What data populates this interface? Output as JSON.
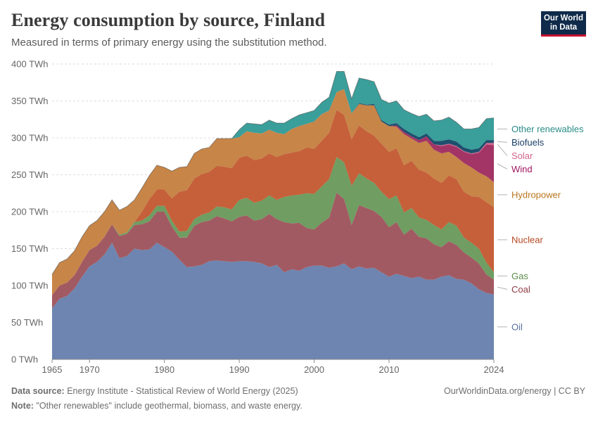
{
  "header": {
    "title": "Energy consumption by source, Finland",
    "subtitle": "Measured in terms of primary energy using the substitution method.",
    "logo_line1": "Our World",
    "logo_line2": "in Data"
  },
  "footer": {
    "source_label": "Data source:",
    "source_text": "Energy Institute - Statistical Review of World Energy (2025)",
    "note_label": "Note:",
    "note_text": "\"Other renewables\" include geothermal, biomass, and waste energy.",
    "credit": "OurWorldinData.org/energy | CC BY"
  },
  "chart_data": {
    "type": "area",
    "stacked": true,
    "title": "Energy consumption by source, Finland",
    "xlabel": "",
    "ylabel": "",
    "ylim": [
      0,
      400
    ],
    "xlim": [
      1965,
      2024
    ],
    "unit_suffix": " TWh",
    "yticks": [
      0,
      50,
      100,
      150,
      200,
      250,
      300,
      350,
      400
    ],
    "yticklabels": [
      "0 TWh",
      "50 TWh",
      "100 TWh",
      "150 TWh",
      "200 TWh",
      "250 TWh",
      "300 TWh",
      "350 TWh",
      "400 TWh"
    ],
    "xticks": [
      1965,
      1970,
      1980,
      1990,
      2000,
      2010,
      2024
    ],
    "x": [
      1965,
      1966,
      1967,
      1968,
      1969,
      1970,
      1971,
      1972,
      1973,
      1974,
      1975,
      1976,
      1977,
      1978,
      1979,
      1980,
      1981,
      1982,
      1983,
      1984,
      1985,
      1986,
      1987,
      1988,
      1989,
      1990,
      1991,
      1992,
      1993,
      1994,
      1995,
      1996,
      1997,
      1998,
      1999,
      2000,
      2001,
      2002,
      2003,
      2004,
      2005,
      2006,
      2007,
      2008,
      2009,
      2010,
      2011,
      2012,
      2013,
      2014,
      2015,
      2016,
      2017,
      2018,
      2019,
      2020,
      2021,
      2022,
      2023,
      2024
    ],
    "series": [
      {
        "name": "Oil",
        "color": "#6d85b0",
        "values": [
          69,
          82,
          86,
          96,
          112,
          126,
          132,
          142,
          158,
          137,
          140,
          150,
          148,
          149,
          158,
          152,
          146,
          135,
          125,
          126,
          128,
          133,
          134,
          133,
          132,
          133,
          133,
          132,
          130,
          125,
          128,
          118,
          122,
          120,
          125,
          127,
          127,
          124,
          126,
          130,
          122,
          126,
          123,
          124,
          118,
          112,
          116,
          113,
          110,
          112,
          108,
          108,
          112,
          114,
          109,
          108,
          103,
          95,
          90,
          88
        ]
      },
      {
        "name": "Coal",
        "color": "#a25a62",
        "values": [
          18,
          18,
          18,
          18,
          20,
          22,
          22,
          24,
          25,
          30,
          30,
          32,
          35,
          38,
          42,
          48,
          34,
          30,
          40,
          55,
          58,
          55,
          60,
          58,
          55,
          60,
          62,
          56,
          60,
          72,
          62,
          68,
          62,
          65,
          53,
          49,
          58,
          68,
          100,
          87,
          60,
          83,
          82,
          77,
          75,
          67,
          70,
          56,
          67,
          54,
          56,
          48,
          40,
          46,
          46,
          37,
          35,
          35,
          25,
          20
        ]
      },
      {
        "name": "Gas",
        "color": "#6f9d62",
        "values": [
          0,
          0,
          0,
          0,
          0,
          0,
          0,
          0,
          0,
          2,
          2,
          4,
          5,
          8,
          8,
          8,
          8,
          8,
          9,
          9,
          10,
          11,
          13,
          15,
          16,
          23,
          24,
          24,
          25,
          25,
          26,
          34,
          38,
          38,
          47,
          48,
          49,
          52,
          48,
          50,
          53,
          43,
          40,
          38,
          34,
          38,
          36,
          30,
          28,
          26,
          25,
          26,
          24,
          26,
          26,
          20,
          20,
          20,
          16,
          10
        ]
      },
      {
        "name": "Nuclear",
        "color": "#c5603a",
        "values": [
          0,
          0,
          0,
          0,
          0,
          0,
          0,
          0,
          0,
          0,
          0,
          0,
          12,
          22,
          22,
          22,
          30,
          54,
          55,
          55,
          55,
          55,
          55,
          55,
          56,
          57,
          57,
          58,
          57,
          57,
          58,
          58,
          58,
          59,
          62,
          61,
          62,
          63,
          64,
          64,
          63,
          65,
          64,
          64,
          65,
          64,
          64,
          64,
          64,
          65,
          64,
          63,
          63,
          63,
          63,
          62,
          63,
          70,
          82,
          88
        ]
      },
      {
        "name": "Hydropower",
        "color": "#c78548",
        "values": [
          28,
          31,
          32,
          33,
          34,
          33,
          34,
          34,
          33,
          33,
          35,
          30,
          32,
          32,
          33,
          30,
          37,
          33,
          32,
          34,
          34,
          33,
          37,
          38,
          40,
          28,
          33,
          37,
          34,
          32,
          33,
          27,
          32,
          34,
          32,
          37,
          36,
          30,
          24,
          35,
          35,
          29,
          35,
          41,
          30,
          35,
          29,
          42,
          30,
          36,
          43,
          39,
          40,
          32,
          30,
          39,
          39,
          33,
          35,
          34
        ]
      },
      {
        "name": "Wind",
        "color": "#a33466",
        "values": [
          0,
          0,
          0,
          0,
          0,
          0,
          0,
          0,
          0,
          0,
          0,
          0,
          0,
          0,
          0,
          0,
          0,
          0,
          0,
          0,
          0,
          0,
          0,
          0,
          0,
          0,
          0,
          0,
          0,
          0,
          0,
          0,
          0,
          0,
          0,
          0,
          0,
          0,
          0,
          0,
          0,
          0,
          0,
          0,
          0,
          0,
          2,
          3,
          3,
          4,
          6,
          7,
          10,
          10,
          14,
          15,
          18,
          27,
          43,
          50
        ]
      },
      {
        "name": "Solar",
        "color": "#d2658a",
        "values": [
          0,
          0,
          0,
          0,
          0,
          0,
          0,
          0,
          0,
          0,
          0,
          0,
          0,
          0,
          0,
          0,
          0,
          0,
          0,
          0,
          0,
          0,
          0,
          0,
          0,
          0,
          0,
          0,
          0,
          0,
          0,
          0,
          0,
          0,
          0,
          0,
          0,
          0,
          0,
          0,
          0,
          0,
          0,
          0,
          0,
          0,
          0,
          0,
          0,
          0,
          0,
          0,
          1,
          1,
          1,
          1,
          1,
          1,
          2,
          3
        ]
      },
      {
        "name": "Biofuels",
        "color": "#1e4f6e",
        "values": [
          0,
          0,
          0,
          0,
          0,
          0,
          0,
          0,
          0,
          0,
          0,
          0,
          0,
          0,
          0,
          0,
          0,
          0,
          0,
          0,
          0,
          0,
          0,
          0,
          0,
          0,
          0,
          0,
          0,
          0,
          0,
          0,
          0,
          0,
          0,
          0,
          0,
          0,
          0,
          0,
          0,
          1,
          1,
          2,
          2,
          2,
          3,
          4,
          4,
          4,
          4,
          5,
          6,
          6,
          6,
          5,
          5,
          5,
          4,
          4
        ]
      },
      {
        "name": "Other renewables",
        "color": "#3a9e9a",
        "values": [
          0,
          0,
          0,
          0,
          0,
          0,
          0,
          0,
          0,
          0,
          0,
          0,
          0,
          0,
          0,
          0,
          0,
          0,
          0,
          0,
          0,
          0,
          0,
          0,
          0,
          10,
          11,
          12,
          12,
          13,
          13,
          15,
          14,
          15,
          15,
          15,
          16,
          18,
          28,
          24,
          20,
          34,
          34,
          30,
          28,
          29,
          30,
          26,
          27,
          28,
          26,
          27,
          28,
          30,
          26,
          25,
          28,
          28,
          29,
          30
        ]
      }
    ],
    "legend": [
      {
        "name": "Other renewables",
        "color": "#2a8d88"
      },
      {
        "name": "Biofuels",
        "color": "#1a3f66"
      },
      {
        "name": "Solar",
        "color": "#d2658a"
      },
      {
        "name": "Wind",
        "color": "#a0155f"
      },
      {
        "name": "Hydropower",
        "color": "#b8751e"
      },
      {
        "name": "Nuclear",
        "color": "#b54720"
      },
      {
        "name": "Gas",
        "color": "#5c8c4a"
      },
      {
        "name": "Coal",
        "color": "#8f3a44"
      },
      {
        "name": "Oil",
        "color": "#5a72a0"
      }
    ]
  }
}
